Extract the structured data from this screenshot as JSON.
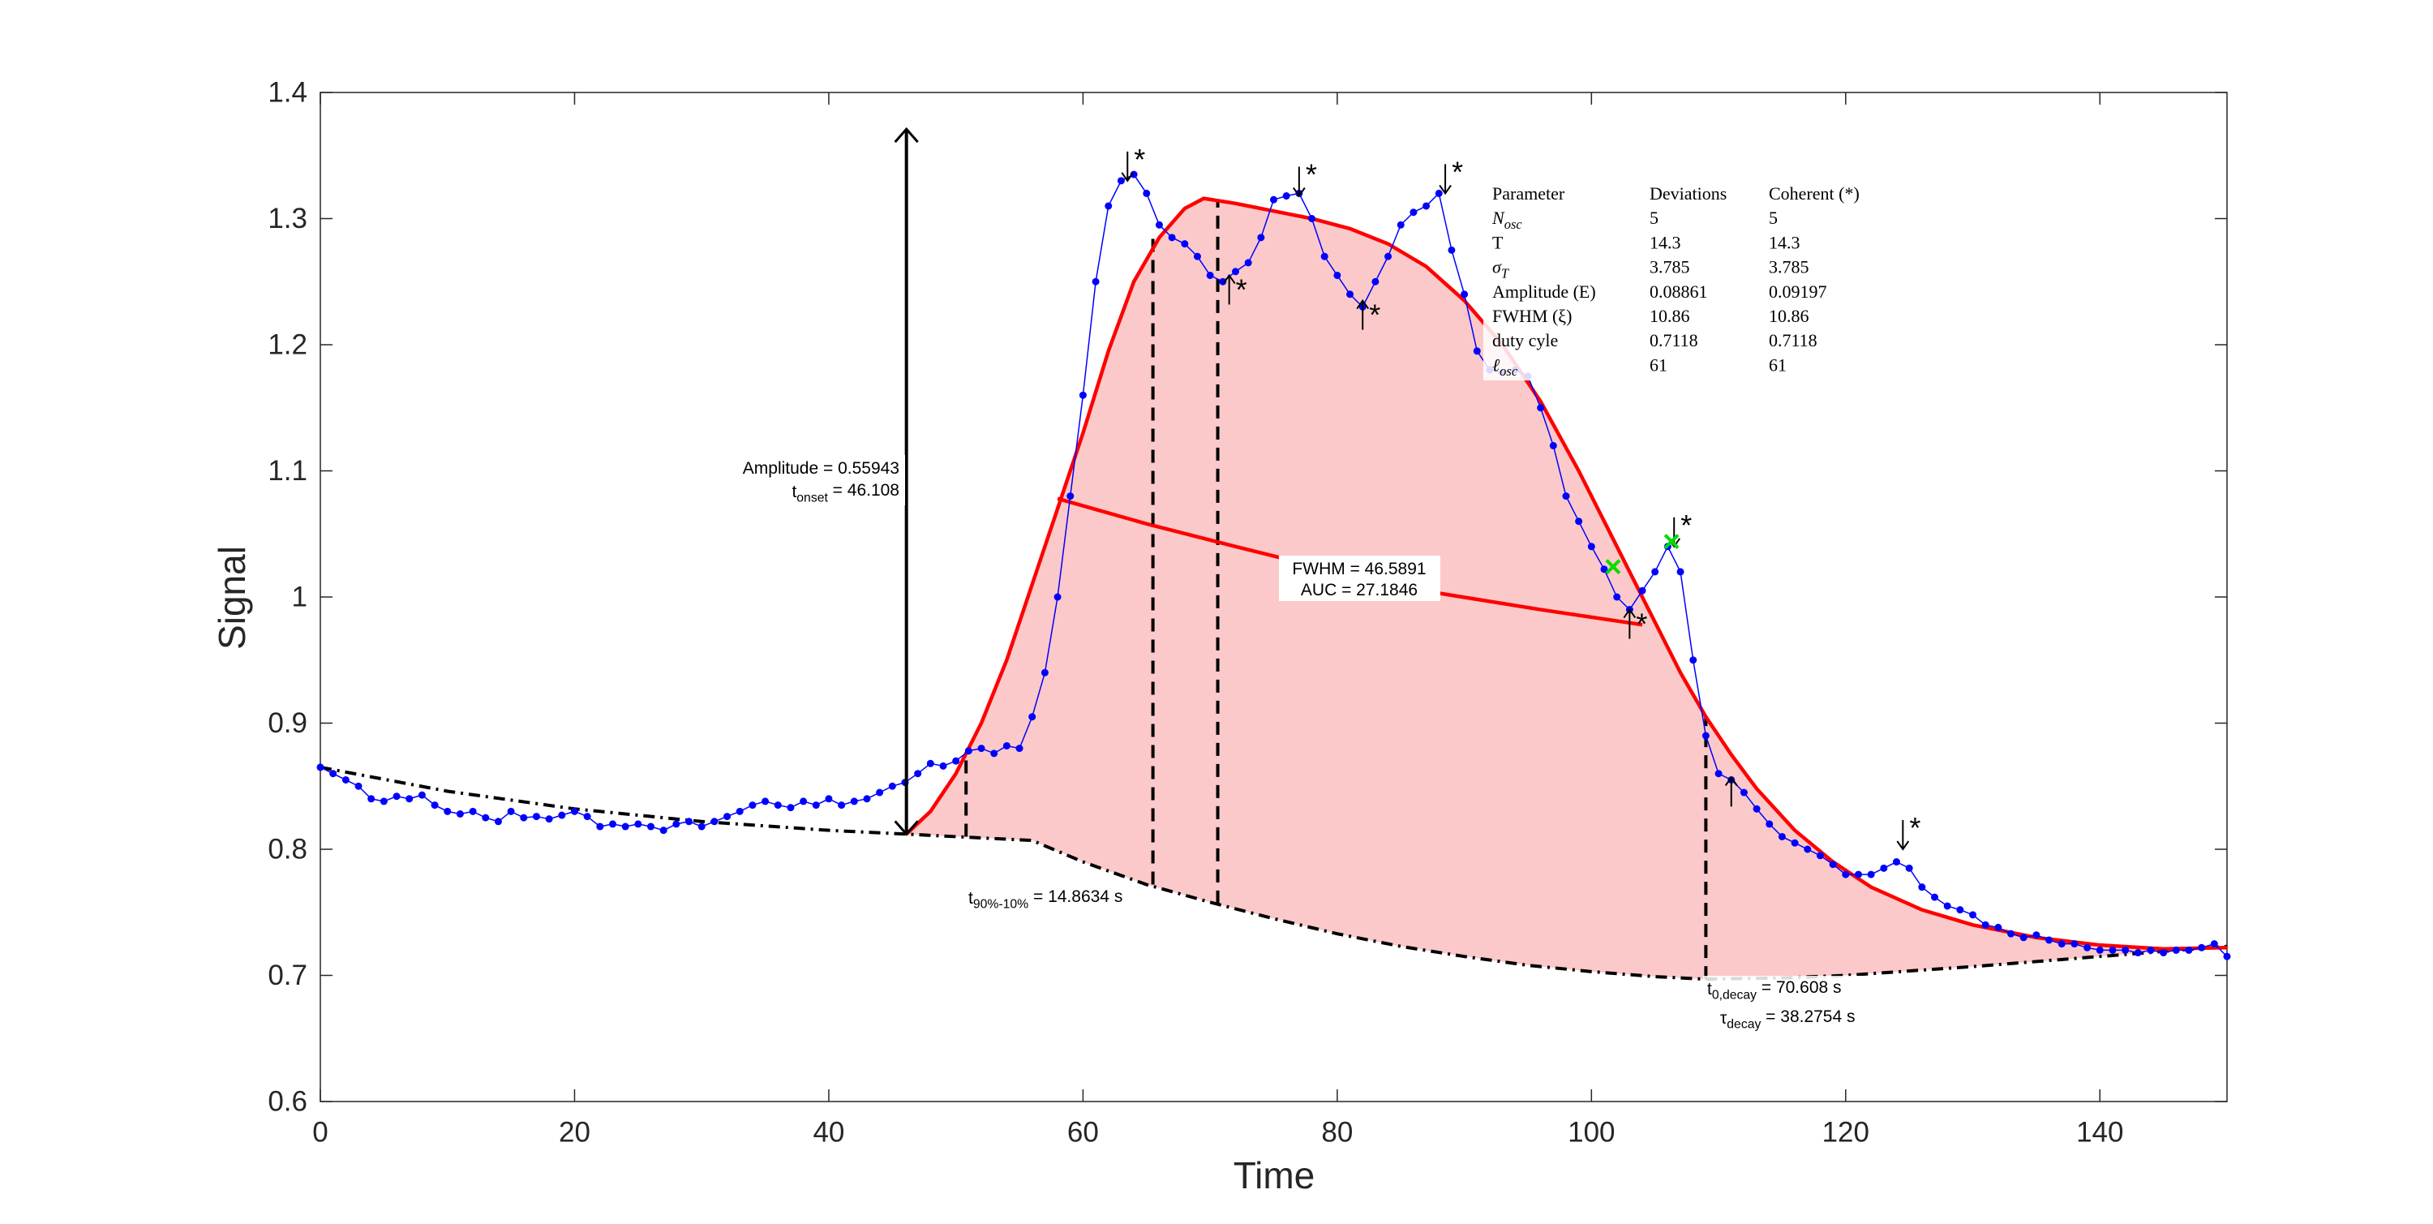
{
  "chart_data": {
    "type": "line",
    "xlabel": "Time",
    "ylabel": "Signal",
    "xlim": [
      0,
      150
    ],
    "ylim": [
      0.6,
      1.4
    ],
    "xticks": [
      0,
      20,
      40,
      60,
      80,
      100,
      120,
      140
    ],
    "yticks": [
      0.6,
      0.7,
      0.8,
      0.9,
      1,
      1.1,
      1.2,
      1.3,
      1.4
    ],
    "series": [
      {
        "style": "dots-line",
        "color": "#0000ff",
        "x": [
          0,
          1,
          2,
          3,
          4,
          5,
          6,
          7,
          8,
          9,
          10,
          11,
          12,
          13,
          14,
          15,
          16,
          17,
          18,
          19,
          20,
          21,
          22,
          23,
          24,
          25,
          26,
          27,
          28,
          29,
          30,
          31,
          32,
          33,
          34,
          35,
          36,
          37,
          38,
          39,
          40,
          41,
          42,
          43,
          44,
          45,
          46,
          47,
          48,
          49,
          50,
          51,
          52,
          53,
          54,
          55,
          56,
          57,
          58,
          59,
          60,
          61,
          62,
          63,
          64,
          65,
          66,
          67,
          68,
          69,
          70,
          71,
          72,
          73,
          74,
          75,
          76,
          77,
          78,
          79,
          80,
          81,
          82,
          83,
          84,
          85,
          86,
          87,
          88,
          89,
          90,
          91,
          92,
          93,
          94,
          95,
          96,
          97,
          98,
          99,
          100,
          101,
          102,
          103,
          104,
          105,
          106,
          107,
          108,
          109,
          110,
          111,
          112,
          113,
          114,
          115,
          116,
          117,
          118,
          119,
          120,
          121,
          122,
          123,
          124,
          125,
          126,
          127,
          128,
          129,
          130,
          131,
          132,
          133,
          134,
          135,
          136,
          137,
          138,
          139,
          140,
          141,
          142,
          143,
          144,
          145,
          146,
          147,
          148,
          149,
          150
        ],
        "values": [
          0.865,
          0.86,
          0.855,
          0.85,
          0.84,
          0.838,
          0.842,
          0.84,
          0.843,
          0.835,
          0.83,
          0.828,
          0.83,
          0.825,
          0.822,
          0.83,
          0.825,
          0.826,
          0.824,
          0.827,
          0.83,
          0.826,
          0.818,
          0.82,
          0.818,
          0.82,
          0.818,
          0.815,
          0.82,
          0.822,
          0.818,
          0.822,
          0.826,
          0.83,
          0.835,
          0.838,
          0.835,
          0.833,
          0.838,
          0.835,
          0.84,
          0.835,
          0.838,
          0.84,
          0.845,
          0.85,
          0.853,
          0.86,
          0.868,
          0.866,
          0.87,
          0.878,
          0.88,
          0.876,
          0.882,
          0.88,
          0.905,
          0.94,
          1.0,
          1.08,
          1.16,
          1.25,
          1.31,
          1.33,
          1.335,
          1.32,
          1.295,
          1.285,
          1.28,
          1.27,
          1.255,
          1.25,
          1.258,
          1.265,
          1.285,
          1.315,
          1.318,
          1.32,
          1.3,
          1.27,
          1.255,
          1.24,
          1.23,
          1.25,
          1.27,
          1.295,
          1.305,
          1.31,
          1.32,
          1.275,
          1.24,
          1.195,
          1.18,
          1.178,
          1.18,
          1.175,
          1.15,
          1.12,
          1.08,
          1.06,
          1.04,
          1.022,
          1.0,
          0.99,
          1.005,
          1.02,
          1.04,
          1.02,
          0.95,
          0.89,
          0.86,
          0.855,
          0.845,
          0.832,
          0.82,
          0.81,
          0.805,
          0.8,
          0.795,
          0.788,
          0.78,
          0.78,
          0.78,
          0.785,
          0.79,
          0.785,
          0.77,
          0.762,
          0.755,
          0.752,
          0.748,
          0.74,
          0.738,
          0.733,
          0.73,
          0.732,
          0.728,
          0.725,
          0.725,
          0.722,
          0.72,
          0.72,
          0.72,
          0.718,
          0.72,
          0.718,
          0.72,
          0.72,
          0.722,
          0.725,
          0.715
        ]
      },
      {
        "style": "line",
        "color": "#ff0000",
        "x": [
          46.1,
          48,
          50,
          52,
          54,
          56,
          58,
          60,
          62,
          64,
          66,
          68,
          69.5,
          72,
          75,
          78,
          81,
          84,
          87,
          90,
          93,
          96,
          99,
          101,
          103,
          105,
          107,
          109,
          111,
          113,
          116,
          119,
          122,
          126,
          130,
          135,
          140,
          145,
          150
        ],
        "values": [
          0.812,
          0.83,
          0.86,
          0.9,
          0.95,
          1.01,
          1.07,
          1.13,
          1.195,
          1.25,
          1.285,
          1.308,
          1.316,
          1.312,
          1.306,
          1.3,
          1.292,
          1.28,
          1.262,
          1.235,
          1.2,
          1.155,
          1.1,
          1.06,
          1.02,
          0.98,
          0.94,
          0.905,
          0.875,
          0.848,
          0.815,
          0.79,
          0.77,
          0.752,
          0.74,
          0.73,
          0.724,
          0.721,
          0.722
        ]
      },
      {
        "style": "dashed",
        "color": "#000000",
        "x": [
          0,
          10,
          20,
          30,
          40,
          46.1,
          50,
          56,
          60,
          65,
          70,
          75,
          80,
          85,
          90,
          95,
          100,
          105,
          109,
          115,
          120,
          130,
          140,
          150
        ],
        "values": [
          0.865,
          0.846,
          0.832,
          0.822,
          0.815,
          0.812,
          0.81,
          0.807,
          0.79,
          0.772,
          0.758,
          0.745,
          0.733,
          0.723,
          0.715,
          0.708,
          0.703,
          0.699,
          0.697,
          0.698,
          0.7,
          0.707,
          0.715,
          0.723
        ]
      },
      {
        "style": "line",
        "color": "#ff0000",
        "x": [
          58,
          65,
          72,
          80,
          88,
          96,
          104
        ],
        "values": [
          1.078,
          1.058,
          1.04,
          1.02,
          1.003,
          0.99,
          0.978
        ]
      }
    ],
    "fill": {
      "color": "#fbc9c9"
    },
    "guides": [
      {
        "x": 50.8,
        "y0": 0.81,
        "y1": 0.876
      },
      {
        "x": 65.5,
        "y0": 0.772,
        "y1": 1.29
      },
      {
        "x": 70.6,
        "y0": 0.757,
        "y1": 1.315
      },
      {
        "x": 109,
        "y0": 0.697,
        "y1": 0.905
      }
    ],
    "amplitude_arrow": {
      "x": 46.108,
      "y0": 0.812,
      "y1": 1.371
    },
    "arrows": [
      {
        "x": 63.5,
        "y": 1.33,
        "dir": "down",
        "label": "*"
      },
      {
        "x": 77,
        "y": 1.318,
        "dir": "down",
        "label": "*"
      },
      {
        "x": 88.5,
        "y": 1.32,
        "dir": "down",
        "label": "*"
      },
      {
        "x": 106.5,
        "y": 1.04,
        "dir": "down",
        "label": "*"
      },
      {
        "x": 124.5,
        "y": 0.8,
        "dir": "down",
        "label": "*"
      },
      {
        "x": 71.5,
        "y": 1.255,
        "dir": "up",
        "label": "*"
      },
      {
        "x": 82,
        "y": 1.235,
        "dir": "up",
        "label": "*"
      },
      {
        "x": 103,
        "y": 0.99,
        "dir": "up",
        "label": "*"
      },
      {
        "x": 111,
        "y": 0.857,
        "dir": "up"
      }
    ],
    "green_points": {
      "color": "#00dd00",
      "x": [
        101.7,
        106.3
      ],
      "values": [
        1.024,
        1.044
      ]
    },
    "annotations": {
      "amplitude": "Amplitude = 0.55943",
      "onset": {
        "base": "t",
        "sub": "onset",
        "rest": " =  46.108"
      },
      "fwhm": "FWHM = 46.5891",
      "auc": "AUC = 27.1846",
      "rise": {
        "base": "t",
        "sub": "90%-10%",
        "rest": " = 14.8634 s"
      },
      "decay_start": {
        "base": "t",
        "sub": "0,decay",
        "rest": " = 70.608 s"
      },
      "decay_tau": {
        "base": "τ",
        "sub": "decay",
        "rest": " =  38.2754 s"
      }
    },
    "table": {
      "columns": [
        "Parameter",
        "Deviations",
        "Coherent (*)"
      ],
      "rows": [
        [
          {
            "base": "N",
            "sub": "osc"
          },
          5,
          5
        ],
        [
          "T",
          14.3,
          14.3
        ],
        [
          {
            "base": "σ",
            "sub": "T"
          },
          3.785,
          3.785
        ],
        [
          "Amplitude (E)",
          0.08861,
          0.09197
        ],
        [
          "FWHM (ξ)",
          10.86,
          10.86
        ],
        [
          "duty cyle",
          0.7118,
          0.7118
        ],
        [
          {
            "base": "ℓ",
            "sub": "osc"
          },
          61,
          61
        ]
      ]
    }
  }
}
